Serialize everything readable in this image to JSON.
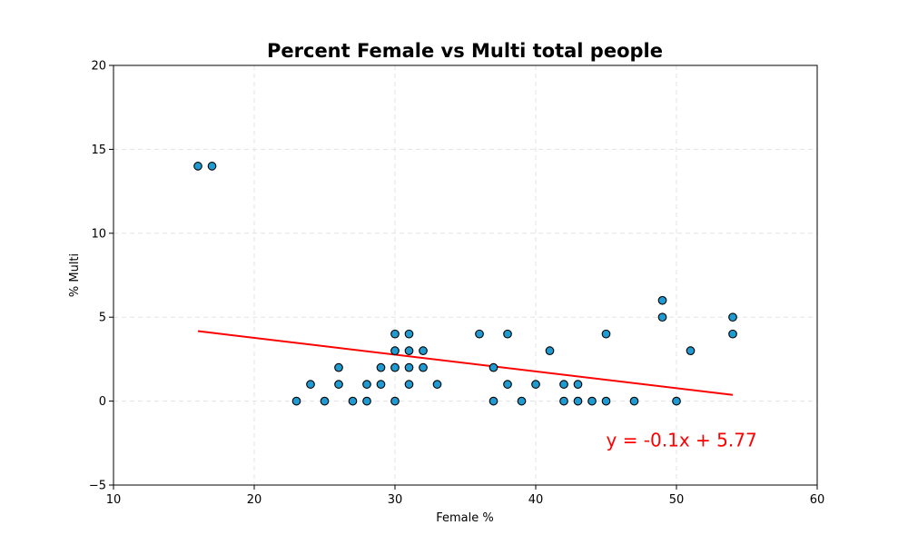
{
  "chart_data": {
    "type": "scatter",
    "title": "Percent Female vs Multi total people",
    "xlabel": "Female %",
    "ylabel": "% Multi",
    "xlim": [
      10,
      60
    ],
    "ylim": [
      -5,
      20
    ],
    "xticks": [
      10,
      20,
      30,
      40,
      50,
      60
    ],
    "yticks": [
      -5,
      0,
      5,
      10,
      15,
      20
    ],
    "x_tick_labels": [
      "10",
      "20",
      "30",
      "40",
      "50",
      "60"
    ],
    "y_tick_labels": [
      "−5",
      "0",
      "5",
      "10",
      "15",
      "20"
    ],
    "grid": true,
    "point_color": "#1f9bd1",
    "line_color": "#ff0000",
    "points": [
      {
        "x": 16,
        "y": 14
      },
      {
        "x": 17,
        "y": 14
      },
      {
        "x": 23,
        "y": 0
      },
      {
        "x": 24,
        "y": 1
      },
      {
        "x": 25,
        "y": 0
      },
      {
        "x": 26,
        "y": 1
      },
      {
        "x": 26,
        "y": 2
      },
      {
        "x": 27,
        "y": 0
      },
      {
        "x": 28,
        "y": 0
      },
      {
        "x": 28,
        "y": 1
      },
      {
        "x": 29,
        "y": 1
      },
      {
        "x": 29,
        "y": 2
      },
      {
        "x": 30,
        "y": 0
      },
      {
        "x": 30,
        "y": 2
      },
      {
        "x": 30,
        "y": 3
      },
      {
        "x": 30,
        "y": 4
      },
      {
        "x": 31,
        "y": 1
      },
      {
        "x": 31,
        "y": 2
      },
      {
        "x": 31,
        "y": 3
      },
      {
        "x": 31,
        "y": 4
      },
      {
        "x": 32,
        "y": 2
      },
      {
        "x": 32,
        "y": 3
      },
      {
        "x": 33,
        "y": 1
      },
      {
        "x": 36,
        "y": 4
      },
      {
        "x": 37,
        "y": 0
      },
      {
        "x": 37,
        "y": 2
      },
      {
        "x": 38,
        "y": 1
      },
      {
        "x": 38,
        "y": 4
      },
      {
        "x": 39,
        "y": 0
      },
      {
        "x": 40,
        "y": 1
      },
      {
        "x": 41,
        "y": 3
      },
      {
        "x": 42,
        "y": 0
      },
      {
        "x": 42,
        "y": 1
      },
      {
        "x": 43,
        "y": 0
      },
      {
        "x": 43,
        "y": 1
      },
      {
        "x": 44,
        "y": 0
      },
      {
        "x": 45,
        "y": 0
      },
      {
        "x": 45,
        "y": 4
      },
      {
        "x": 47,
        "y": 0
      },
      {
        "x": 49,
        "y": 5
      },
      {
        "x": 49,
        "y": 6
      },
      {
        "x": 50,
        "y": 0
      },
      {
        "x": 51,
        "y": 3
      },
      {
        "x": 54,
        "y": 4
      },
      {
        "x": 54,
        "y": 5
      }
    ],
    "regression": {
      "slope": -0.1,
      "intercept": 5.77,
      "x_range": [
        16,
        54
      ],
      "equation": "y = -0.1x + 5.77",
      "equation_x": 45,
      "equation_y": -2.7
    }
  }
}
